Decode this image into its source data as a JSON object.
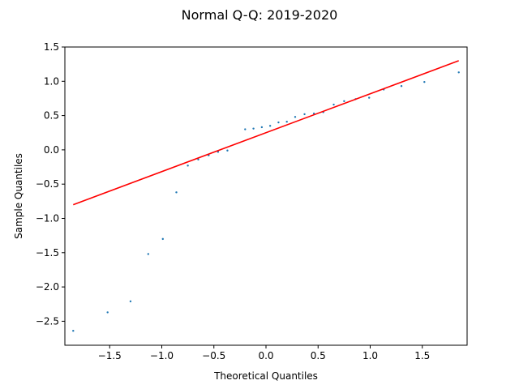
{
  "chart_data": {
    "type": "scatter",
    "title": "Normal Q-Q: 2019-2020",
    "xlabel": "Theoretical Quantiles",
    "ylabel": "Sample Quantiles",
    "xlim": [
      -1.93,
      1.93
    ],
    "ylim": [
      -2.85,
      1.5
    ],
    "xticks": [
      -1.5,
      -1.0,
      -0.5,
      0.0,
      0.5,
      1.0,
      1.5
    ],
    "xtick_labels": [
      "−1.5",
      "−1.0",
      "−0.5",
      "0.0",
      "0.5",
      "1.0",
      "1.5"
    ],
    "yticks": [
      -2.5,
      -2.0,
      -1.5,
      -1.0,
      -0.5,
      0.0,
      0.5,
      1.0,
      1.5
    ],
    "ytick_labels": [
      "−2.5",
      "−2.0",
      "−1.5",
      "−1.0",
      "−0.5",
      "0.0",
      "0.5",
      "1.0",
      "1.5"
    ],
    "grid": false,
    "series": [
      {
        "values": [
          {
            "x": -1.85,
            "y": -2.64
          },
          {
            "x": -1.52,
            "y": -2.37
          },
          {
            "x": -1.3,
            "y": -2.21
          },
          {
            "x": -1.13,
            "y": -1.52
          },
          {
            "x": -0.99,
            "y": -1.3
          },
          {
            "x": -0.86,
            "y": -0.62
          },
          {
            "x": -0.75,
            "y": -0.23
          },
          {
            "x": -0.65,
            "y": -0.14
          },
          {
            "x": -0.55,
            "y": -0.08
          },
          {
            "x": -0.46,
            "y": -0.03
          },
          {
            "x": -0.37,
            "y": -0.01
          },
          {
            "x": -0.2,
            "y": 0.3
          },
          {
            "x": -0.12,
            "y": 0.31
          },
          {
            "x": -0.04,
            "y": 0.33
          },
          {
            "x": 0.04,
            "y": 0.35
          },
          {
            "x": 0.12,
            "y": 0.4
          },
          {
            "x": 0.2,
            "y": 0.41
          },
          {
            "x": 0.28,
            "y": 0.48
          },
          {
            "x": 0.37,
            "y": 0.52
          },
          {
            "x": 0.46,
            "y": 0.53
          },
          {
            "x": 0.55,
            "y": 0.55
          },
          {
            "x": 0.65,
            "y": 0.66
          },
          {
            "x": 0.75,
            "y": 0.71
          },
          {
            "x": 0.86,
            "y": 0.74
          },
          {
            "x": 0.99,
            "y": 0.76
          },
          {
            "x": 1.13,
            "y": 0.88
          },
          {
            "x": 1.3,
            "y": 0.93
          },
          {
            "x": 1.52,
            "y": 0.99
          },
          {
            "x": 1.85,
            "y": 1.13
          }
        ]
      }
    ],
    "reference_line": {
      "x": [
        -1.85,
        1.85
      ],
      "y": [
        -0.8,
        1.3
      ]
    },
    "colors": {
      "points": "#1f77b4",
      "line": "#ff0000"
    }
  }
}
